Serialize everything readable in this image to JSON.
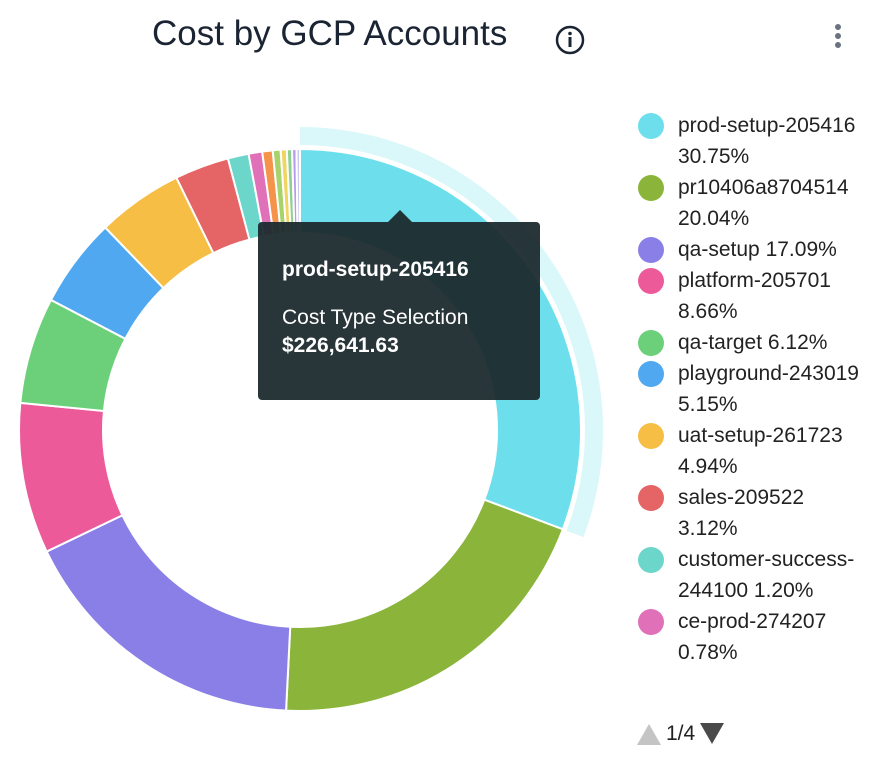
{
  "chart_data": {
    "type": "donut",
    "title": "Cost by GCP Accounts",
    "categories": [
      "prod-setup-205416",
      "pr10406a8704514",
      "qa-setup",
      "platform-205701",
      "qa-target",
      "playground-243019",
      "uat-setup-261723",
      "sales-209522",
      "customer-success-244100",
      "ce-prod-274207",
      null,
      null,
      null,
      null,
      null,
      null
    ],
    "values": [
      30.75,
      20.04,
      17.09,
      8.66,
      6.12,
      5.15,
      4.94,
      3.12,
      1.2,
      0.78,
      0.6,
      0.45,
      0.35,
      0.3,
      0.25,
      0.2
    ],
    "value_labels": [
      "30.75%",
      "20.04%",
      "17.09%",
      "8.66%",
      "6.12%",
      "5.15%",
      "4.94%",
      "3.12%",
      "1.20%",
      "0.78%",
      null,
      null,
      null,
      null,
      null,
      null
    ],
    "colors": [
      "#6ddfec",
      "#8ab53a",
      "#8a7fe6",
      "#ec5a9a",
      "#6cd07a",
      "#4fa8f0",
      "#f7be45",
      "#e56465",
      "#6dd6cb",
      "#e070b8",
      "#f5934a",
      "#a8d36a",
      "#f0d560",
      "#8fd08f",
      "#b69be8",
      "#c9c9f0"
    ],
    "legend_page": "1/4",
    "tooltip": {
      "title": "prod-setup-205416",
      "series": "Cost Type Selection",
      "value": "$226,641.63"
    }
  }
}
